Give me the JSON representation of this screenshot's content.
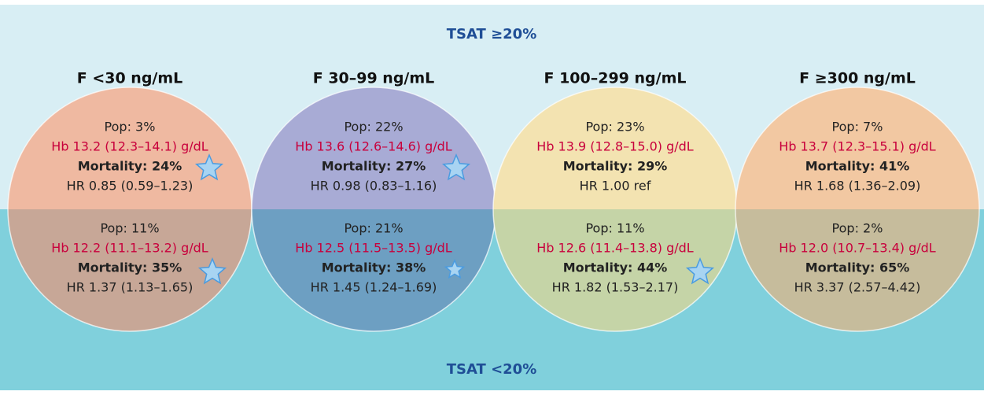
{
  "top_label": "TSAT ≥20%",
  "bottom_label": "TSAT <20%",
  "columns": [
    {
      "header": "F <30 ng/mL",
      "top": {
        "pop": "Pop: 3%",
        "hb": "Hb 13.2 (12.3–14.1) g/dL",
        "mortality": "Mortality: 24%",
        "hr": "HR 0.85 (0.59–1.23)"
      },
      "bottom": {
        "pop": "Pop: 11%",
        "hb": "Hb 12.2 (11.1–13.2) g/dL",
        "mortality": "Mortality: 35%",
        "hr": "HR 1.37 (1.13–1.65)"
      }
    },
    {
      "header": "F 30–99 ng/mL",
      "top": {
        "pop": "Pop: 22%",
        "hb": "Hb 13.6 (12.6–14.6) g/dL",
        "mortality": "Mortality: 27%",
        "hr": "HR 0.98 (0.83–1.16)"
      },
      "bottom": {
        "pop": "Pop: 21%",
        "hb": "Hb 12.5 (11.5–13.5) g/dL",
        "mortality": "Mortality: 38%",
        "hr": "HR 1.45 (1.24–1.69)"
      }
    },
    {
      "header": "F 100–299 ng/mL",
      "top": {
        "pop": "Pop: 23%",
        "hb": "Hb 13.9 (12.8–15.0) g/dL",
        "mortality": "Mortality: 29%",
        "hr": "HR 1.00 ref"
      },
      "bottom": {
        "pop": "Pop: 11%",
        "hb": "Hb 12.6 (11.4–13.8) g/dL",
        "mortality": "Mortality: 44%",
        "hr": "HR 1.82 (1.53–2.17)"
      }
    },
    {
      "header": "F ≥300 ng/mL",
      "top": {
        "pop": "Pop: 7%",
        "hb": "Hb 13.7 (12.3–15.1) g/dL",
        "mortality": "Mortality: 41%",
        "hr": "HR 1.68 (1.36–2.09)"
      },
      "bottom": {
        "pop": "Pop: 2%",
        "hb": "Hb 12.0 (10.7–13.4) g/dL",
        "mortality": "Mortality: 65%",
        "hr": "HR 3.37 (2.57–4.42)"
      }
    }
  ]
}
